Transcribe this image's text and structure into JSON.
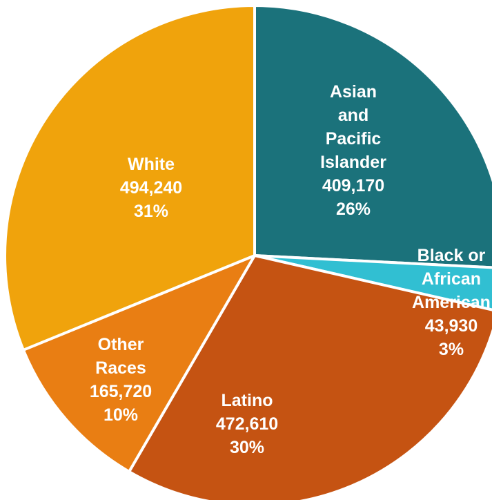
{
  "chart_data": {
    "type": "pie",
    "slices": [
      {
        "label_lines": [
          "Asian",
          "and",
          "Pacific",
          "Islander"
        ],
        "value_text": "409,170",
        "pct_text": "26%",
        "value": 409170,
        "color": "#1b727b"
      },
      {
        "label_lines": [
          "Black or",
          "African",
          "American"
        ],
        "value_text": "43,930",
        "pct_text": "3%",
        "value": 43930,
        "color": "#31bfd2"
      },
      {
        "label_lines": [
          "Latino"
        ],
        "value_text": "472,610",
        "pct_text": "30%",
        "value": 472610,
        "color": "#c55312"
      },
      {
        "label_lines": [
          "Other",
          "Races"
        ],
        "value_text": "165,720",
        "pct_text": "10%",
        "value": 165720,
        "color": "#e97e13"
      },
      {
        "label_lines": [
          "White"
        ],
        "value_text": "494,240",
        "pct_text": "31%",
        "value": 494240,
        "color": "#f0a30c"
      }
    ]
  }
}
